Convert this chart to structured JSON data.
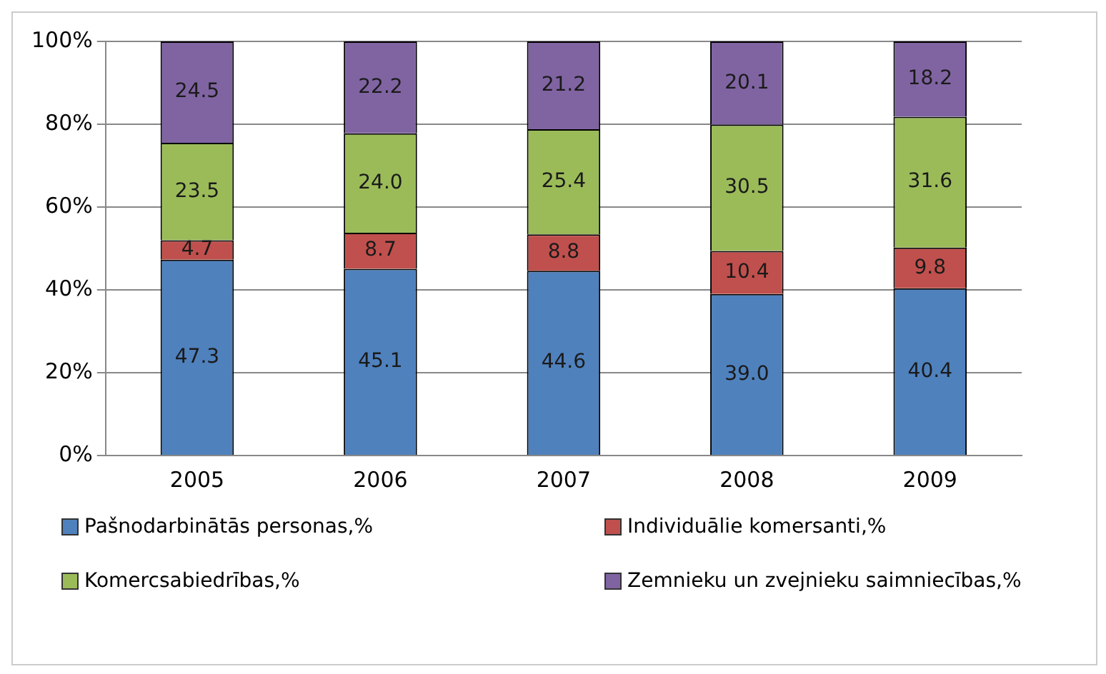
{
  "chart_data": {
    "type": "bar",
    "stacked": true,
    "categories": [
      "2005",
      "2006",
      "2007",
      "2008",
      "2009"
    ],
    "series": [
      {
        "name": "Pašnodarbinātās personas,%",
        "color": "#4f81bd",
        "values": [
          47.3,
          45.1,
          44.6,
          39.0,
          40.4
        ],
        "value_labels": [
          "47.3",
          "45.1",
          "44.6",
          "39.0",
          "40.4"
        ]
      },
      {
        "name": "Individuālie komersanti,%",
        "color": "#c0504d",
        "values": [
          4.7,
          8.7,
          8.8,
          10.4,
          9.8
        ],
        "value_labels": [
          "4.7",
          "8.7",
          "8.8",
          "10.4",
          "9.8"
        ]
      },
      {
        "name": "Komercsabiedrības,%",
        "color": "#9bbb59",
        "values": [
          23.5,
          24.0,
          25.4,
          30.5,
          31.6
        ],
        "value_labels": [
          "23.5",
          "24.0",
          "25.4",
          "30.5",
          "31.6"
        ]
      },
      {
        "name": "Zemnieku un zvejnieku saimniecības,%",
        "color": "#8064a2",
        "values": [
          24.5,
          22.2,
          21.2,
          20.1,
          18.2
        ],
        "value_labels": [
          "24.5",
          "22.2",
          "21.2",
          "20.1",
          "18.2"
        ]
      }
    ],
    "ylim": [
      0,
      100
    ],
    "yticks": [
      {
        "value": 0,
        "label": "0%"
      },
      {
        "value": 20,
        "label": "20%"
      },
      {
        "value": 40,
        "label": "40%"
      },
      {
        "value": 60,
        "label": "60%"
      },
      {
        "value": 80,
        "label": "80%"
      },
      {
        "value": 100,
        "label": "100%"
      }
    ],
    "grid": "y",
    "legend": "bottom"
  }
}
